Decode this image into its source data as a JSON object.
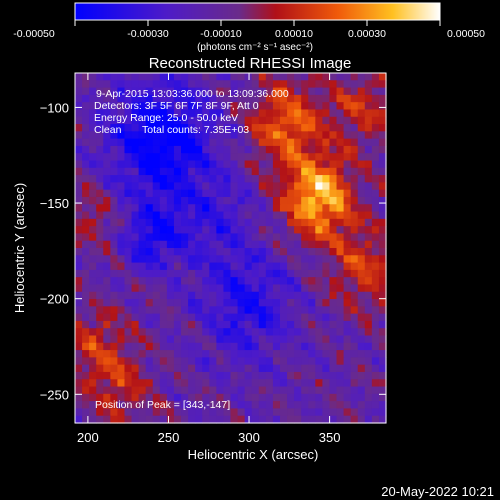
{
  "colorbar": {
    "tick_labels": [
      "-0.00050",
      "-0.00030",
      "-0.00010",
      "0.00010",
      "0.00030",
      "0.00050"
    ],
    "tick_values": [
      -0.0005,
      -0.0003,
      -0.0001,
      0.0001,
      0.0003,
      0.0005
    ],
    "range": [
      -0.0005,
      0.0005
    ],
    "unit_label": "(photons cm⁻² s⁻¹ asec⁻²)"
  },
  "info": {
    "time_range": "9-Apr-2015 13:03:36.000 to 13:09:36.000",
    "detectors": "Detectors: 3F 5F 6F 7F 8F 9F, Att 0",
    "energy": "Energy Range: 25.0 - 50.0 keV",
    "algorithm": "Clean",
    "counts": "Total counts: 7.35E+03",
    "peak": "Position of Peak = [343,-147]"
  },
  "footer": {
    "date": "20-May-2022 10:21"
  },
  "colors": {
    "foreground": "#ffffff",
    "background": "#000000"
  },
  "chart_data": {
    "type": "heatmap",
    "title": "Reconstructed RHESSI Image",
    "xlabel": "Heliocentric X (arcsec)",
    "ylabel": "Heliocentric Y (arcsec)",
    "xlim": [
      192,
      385
    ],
    "ylim": [
      -265,
      -82
    ],
    "xticks": [
      200,
      250,
      300,
      350
    ],
    "yticks": [
      -100,
      -150,
      -200,
      -250
    ],
    "xtick_labels": [
      "200",
      "250",
      "300",
      "350"
    ],
    "ytick_labels": [
      "−100",
      "−150",
      "−200",
      "−250"
    ],
    "colormap": "blue-purple-red-orange-yellow-white",
    "peak": [
      343,
      -147
    ],
    "features": [
      {
        "x": 343,
        "y": -147,
        "sigma": 15,
        "amp": 0.0005
      },
      {
        "x": 322,
        "y": -108,
        "sigma": 16,
        "amp": 0.00032
      },
      {
        "x": 370,
        "y": -100,
        "sigma": 14,
        "amp": 0.00022
      },
      {
        "x": 372,
        "y": -185,
        "sigma": 16,
        "amp": 0.00024
      },
      {
        "x": 205,
        "y": -225,
        "sigma": 14,
        "amp": 0.00022
      },
      {
        "x": 204,
        "y": -158,
        "sigma": 12,
        "amp": 0.00014
      },
      {
        "x": 222,
        "y": -248,
        "sigma": 14,
        "amp": 0.00018
      },
      {
        "x": 245,
        "y": -118,
        "sigma": 22,
        "amp": -0.0004
      },
      {
        "x": 240,
        "y": -168,
        "sigma": 12,
        "amp": -0.00028
      },
      {
        "x": 300,
        "y": -205,
        "sigma": 20,
        "amp": -0.00026
      },
      {
        "x": 278,
        "y": -160,
        "sigma": 18,
        "amp": -0.00018
      }
    ],
    "baseline": -0.00012
  }
}
